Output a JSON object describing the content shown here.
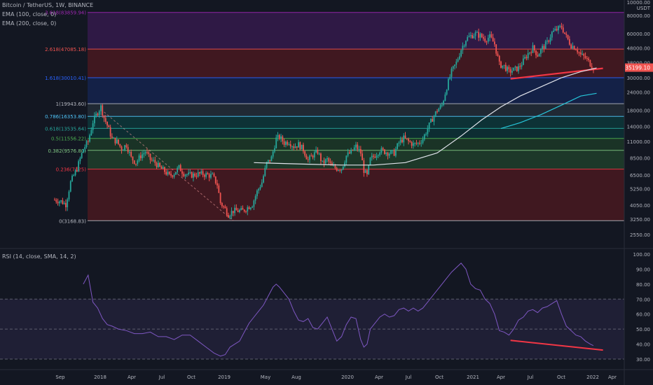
{
  "header": {
    "symbol_line": "Bitcoin / TetherUS, 1W, BINANCE",
    "ema100": "EMA (100, close, 0)",
    "ema200": "EMA (200, close, 0)"
  },
  "rsi_header": "RSI (14, close, SMA, 14, 2)",
  "price_axis": {
    "unit_top": "10000.00",
    "unit_label": "USDT",
    "current_price": "35199.10",
    "current_price_color": "#ef5350"
  },
  "colors": {
    "background": "#131722",
    "up_candle": "#26a69a",
    "down_candle": "#ef5350",
    "ema100": "#e0e3eb",
    "ema200": "#26c6da",
    "rsi_line": "#7e57c2",
    "trendline": "#f23645"
  },
  "chart_data": [
    {
      "type": "candlestick",
      "title": "Bitcoin / TetherUS, 1W, BINANCE",
      "scale": "log",
      "xlabel": "",
      "ylabel": "",
      "y_ticks": [
        "80000.00",
        "60000.00",
        "48000.00",
        "38000.00",
        "30000.00",
        "24000.00",
        "18000.00",
        "14000.00",
        "11000.00",
        "8500.00",
        "6500.00",
        "5250.00",
        "4050.00",
        "3250.00",
        "2550.00"
      ],
      "x_ticks": [
        "Sep",
        "2018",
        "Apr",
        "Jul",
        "Oct",
        "2019",
        "May",
        "Aug",
        "2020",
        "Apr",
        "Jul",
        "Oct",
        "2021",
        "Apr",
        "Jul",
        "Oct",
        "2022",
        "Apr"
      ],
      "fib_levels": [
        {
          "label": "3.618(83859.94)",
          "value": 83859.94,
          "color": "#9c27b0"
        },
        {
          "label": "2.618(47085.18)",
          "value": 47085.18,
          "color": "#ef5350"
        },
        {
          "label": "1.618(30010.41)",
          "value": 30010.41,
          "color": "#2962ff"
        },
        {
          "label": "1(19943.60)",
          "value": 19943.6,
          "color": "#b2b5be"
        },
        {
          "label": "0.786(16353.80)",
          "value": 16353.8,
          "color": "#4fc3f7"
        },
        {
          "label": "0.618(13535.64)",
          "value": 13535.64,
          "color": "#26a69a"
        },
        {
          "label": "0.5(11556.22)",
          "value": 11556.22,
          "color": "#4caf50"
        },
        {
          "label": "0.382(9576.80)",
          "value": 9576.8,
          "color": "#81c784"
        },
        {
          "label": "0.236(7125)",
          "value": 7125,
          "color": "#f23645"
        },
        {
          "label": "0(3168.83)",
          "value": 3168.83,
          "color": "#b2b5be"
        }
      ],
      "fib_bands": [
        {
          "from": 47085.18,
          "to": 83859.94,
          "color": "#7b1fa2"
        },
        {
          "from": 30010.41,
          "to": 47085.18,
          "color": "#b71c1c"
        },
        {
          "from": 19943.6,
          "to": 30010.41,
          "color": "#1a3ea8"
        },
        {
          "from": 16353.8,
          "to": 19943.6,
          "color": "#455a64"
        },
        {
          "from": 13535.64,
          "to": 16353.8,
          "color": "#00796b"
        },
        {
          "from": 11556.22,
          "to": 13535.64,
          "color": "#00695c"
        },
        {
          "from": 9576.8,
          "to": 11556.22,
          "color": "#2e7d32"
        },
        {
          "from": 7125,
          "to": 9576.8,
          "color": "#388e3c"
        },
        {
          "from": 3168.83,
          "to": 7125,
          "color": "#b71c1c"
        }
      ],
      "price_path": [
        [
          0,
          4400
        ],
        [
          4,
          4300
        ],
        [
          7,
          4100
        ],
        [
          10,
          5800
        ],
        [
          14,
          7200
        ],
        [
          18,
          9800
        ],
        [
          21,
          11000
        ],
        [
          24,
          15000
        ],
        [
          27,
          17500
        ],
        [
          29,
          19000
        ],
        [
          31,
          16000
        ],
        [
          33,
          14200
        ],
        [
          36,
          11500
        ],
        [
          39,
          11000
        ],
        [
          42,
          9800
        ],
        [
          45,
          10500
        ],
        [
          48,
          8500
        ],
        [
          51,
          7900
        ],
        [
          54,
          8800
        ],
        [
          57,
          9400
        ],
        [
          60,
          8300
        ],
        [
          63,
          7900
        ],
        [
          66,
          7300
        ],
        [
          69,
          6900
        ],
        [
          72,
          6400
        ],
        [
          75,
          6700
        ],
        [
          78,
          7300
        ],
        [
          81,
          6700
        ],
        [
          84,
          6500
        ],
        [
          87,
          6500
        ],
        [
          90,
          6600
        ],
        [
          93,
          6600
        ],
        [
          96,
          6500
        ],
        [
          99,
          6400
        ],
        [
          102,
          5600
        ],
        [
          104,
          4200
        ],
        [
          107,
          3800
        ],
        [
          109,
          3500
        ],
        [
          112,
          3700
        ],
        [
          115,
          3700
        ],
        [
          118,
          3700
        ],
        [
          121,
          3900
        ],
        [
          124,
          4100
        ],
        [
          127,
          5000
        ],
        [
          130,
          5800
        ],
        [
          133,
          7800
        ],
        [
          136,
          8500
        ],
        [
          139,
          11500
        ],
        [
          141,
          11800
        ],
        [
          144,
          10800
        ],
        [
          147,
          11000
        ],
        [
          150,
          10200
        ],
        [
          153,
          10500
        ],
        [
          156,
          9700
        ],
        [
          159,
          8200
        ],
        [
          162,
          8900
        ],
        [
          165,
          9400
        ],
        [
          168,
          7800
        ],
        [
          171,
          8300
        ],
        [
          174,
          7400
        ],
        [
          177,
          7200
        ],
        [
          180,
          7200
        ],
        [
          183,
          8800
        ],
        [
          186,
          9300
        ],
        [
          189,
          10200
        ],
        [
          192,
          9200
        ],
        [
          194,
          7000
        ],
        [
          196,
          6400
        ],
        [
          198,
          8300
        ],
        [
          201,
          8900
        ],
        [
          204,
          9600
        ],
        [
          207,
          9400
        ],
        [
          210,
          9200
        ],
        [
          213,
          9200
        ],
        [
          216,
          10800
        ],
        [
          219,
          11600
        ],
        [
          222,
          11000
        ],
        [
          225,
          10500
        ],
        [
          228,
          10700
        ],
        [
          231,
          11500
        ],
        [
          234,
          13500
        ],
        [
          237,
          15800
        ],
        [
          240,
          18000
        ],
        [
          243,
          19500
        ],
        [
          246,
          26000
        ],
        [
          249,
          33000
        ],
        [
          252,
          38000
        ],
        [
          255,
          47000
        ],
        [
          258,
          55000
        ],
        [
          261,
          58000
        ],
        [
          264,
          60000
        ],
        [
          267,
          58000
        ],
        [
          270,
          55000
        ],
        [
          273,
          57000
        ],
        [
          276,
          51000
        ],
        [
          279,
          37000
        ],
        [
          282,
          36000
        ],
        [
          285,
          33000
        ],
        [
          288,
          34000
        ],
        [
          291,
          35000
        ],
        [
          294,
          39000
        ],
        [
          297,
          44000
        ],
        [
          300,
          48000
        ],
        [
          303,
          43000
        ],
        [
          306,
          48000
        ],
        [
          309,
          52000
        ],
        [
          312,
          61000
        ],
        [
          315,
          64000
        ],
        [
          318,
          67000
        ],
        [
          321,
          57000
        ],
        [
          324,
          50000
        ],
        [
          327,
          48000
        ],
        [
          330,
          43000
        ],
        [
          333,
          41000
        ],
        [
          336,
          37500
        ],
        [
          338,
          35199
        ]
      ],
      "ema100_path": [
        [
          125,
          7900
        ],
        [
          140,
          7800
        ],
        [
          160,
          7700
        ],
        [
          180,
          7600
        ],
        [
          200,
          7600
        ],
        [
          220,
          7900
        ],
        [
          240,
          9200
        ],
        [
          255,
          12000
        ],
        [
          268,
          15500
        ],
        [
          280,
          19000
        ],
        [
          292,
          22500
        ],
        [
          305,
          26000
        ],
        [
          318,
          30000
        ],
        [
          330,
          33000
        ],
        [
          340,
          35000
        ]
      ],
      "ema200_path": [
        [
          280,
          13500
        ],
        [
          292,
          14800
        ],
        [
          305,
          16800
        ],
        [
          318,
          19500
        ],
        [
          330,
          22500
        ],
        [
          340,
          23500
        ]
      ],
      "annotations": [
        {
          "type": "diagonal-dashed",
          "from": [
            31,
            17500
          ],
          "to": [
            112,
            3168.83
          ]
        },
        {
          "type": "trendline",
          "from": [
            286,
            29500
          ],
          "to": [
            344,
            34800
          ]
        }
      ]
    },
    {
      "type": "line",
      "title": "RSI (14, close, SMA, 14, 2)",
      "xlabel": "",
      "ylabel": "",
      "ylim": [
        25,
        100
      ],
      "y_ticks": [
        "100.00",
        "90.00",
        "80.00",
        "70.00",
        "60.00",
        "50.00",
        "40.00",
        "30.00"
      ],
      "levels": [
        70,
        50,
        30
      ],
      "rsi_path": [
        [
          18,
          80
        ],
        [
          21,
          86
        ],
        [
          24,
          68
        ],
        [
          27,
          64
        ],
        [
          30,
          57
        ],
        [
          33,
          53
        ],
        [
          36,
          52
        ],
        [
          40,
          50
        ],
        [
          45,
          49
        ],
        [
          50,
          47
        ],
        [
          55,
          47
        ],
        [
          60,
          48
        ],
        [
          65,
          45
        ],
        [
          70,
          45
        ],
        [
          75,
          43
        ],
        [
          80,
          46
        ],
        [
          85,
          46
        ],
        [
          90,
          42
        ],
        [
          95,
          38
        ],
        [
          100,
          34
        ],
        [
          104,
          32
        ],
        [
          107,
          33
        ],
        [
          110,
          38
        ],
        [
          113,
          40
        ],
        [
          116,
          42
        ],
        [
          119,
          48
        ],
        [
          122,
          54
        ],
        [
          125,
          58
        ],
        [
          128,
          62
        ],
        [
          131,
          66
        ],
        [
          134,
          72
        ],
        [
          137,
          78
        ],
        [
          139,
          80
        ],
        [
          141,
          78
        ],
        [
          144,
          74
        ],
        [
          147,
          70
        ],
        [
          150,
          62
        ],
        [
          153,
          56
        ],
        [
          156,
          55
        ],
        [
          159,
          57
        ],
        [
          162,
          51
        ],
        [
          165,
          50
        ],
        [
          168,
          54
        ],
        [
          171,
          58
        ],
        [
          174,
          50
        ],
        [
          177,
          42
        ],
        [
          180,
          45
        ],
        [
          183,
          53
        ],
        [
          186,
          58
        ],
        [
          189,
          57
        ],
        [
          192,
          43
        ],
        [
          194,
          38
        ],
        [
          196,
          40
        ],
        [
          198,
          50
        ],
        [
          201,
          54
        ],
        [
          204,
          58
        ],
        [
          207,
          60
        ],
        [
          210,
          58
        ],
        [
          213,
          59
        ],
        [
          216,
          63
        ],
        [
          219,
          64
        ],
        [
          222,
          62
        ],
        [
          225,
          64
        ],
        [
          228,
          62
        ],
        [
          231,
          64
        ],
        [
          234,
          68
        ],
        [
          237,
          72
        ],
        [
          240,
          76
        ],
        [
          243,
          80
        ],
        [
          246,
          84
        ],
        [
          249,
          88
        ],
        [
          252,
          91
        ],
        [
          255,
          94
        ],
        [
          258,
          90
        ],
        [
          261,
          80
        ],
        [
          264,
          77
        ],
        [
          267,
          76
        ],
        [
          270,
          70
        ],
        [
          273,
          67
        ],
        [
          276,
          60
        ],
        [
          279,
          49
        ],
        [
          282,
          48
        ],
        [
          285,
          46
        ],
        [
          288,
          50
        ],
        [
          291,
          56
        ],
        [
          294,
          58
        ],
        [
          297,
          62
        ],
        [
          300,
          63
        ],
        [
          303,
          61
        ],
        [
          306,
          64
        ],
        [
          309,
          65
        ],
        [
          312,
          67
        ],
        [
          315,
          69
        ],
        [
          318,
          60
        ],
        [
          321,
          52
        ],
        [
          324,
          49
        ],
        [
          327,
          46
        ],
        [
          330,
          45
        ],
        [
          333,
          42
        ],
        [
          336,
          40
        ],
        [
          338,
          39
        ]
      ],
      "trendline": {
        "from": [
          286,
          42.5
        ],
        "to": [
          344,
          36
        ]
      }
    }
  ]
}
